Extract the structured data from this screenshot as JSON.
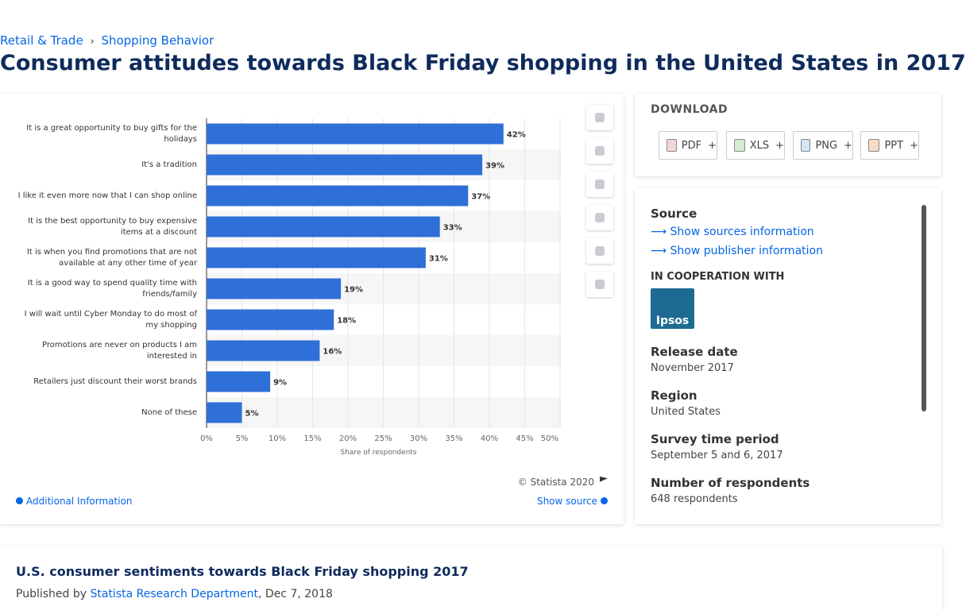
{
  "breadcrumb": {
    "items": [
      "Retail & Trade",
      "Shopping Behavior"
    ],
    "separator": "›"
  },
  "title": "Consumer attitudes towards Black Friday shopping in the United States in 2017",
  "chart_data": {
    "type": "bar",
    "orientation": "horizontal",
    "categories": [
      "It is a great opportunity to buy gifts for the holidays",
      "It's a tradition",
      "I like it even more now that I can shop online",
      "It is the best opportunity to buy expensive items at a discount",
      "It is when you find promotions that are not available at any other time of year",
      "It is a good way to spend quality time with friends/family",
      "I will wait until Cyber Monday to do most of my shopping",
      "Promotions are never on products I am interested in",
      "Retailers just discount their worst brands",
      "None of these"
    ],
    "values": [
      42,
      39,
      37,
      33,
      31,
      19,
      18,
      16,
      9,
      5
    ],
    "value_labels": [
      "42%",
      "39%",
      "37%",
      "33%",
      "31%",
      "19%",
      "18%",
      "16%",
      "9%",
      "5%"
    ],
    "color": "#2f6fd8",
    "xlim": [
      0,
      50
    ],
    "xticks": [
      {
        "value": 0,
        "label": "0%"
      },
      {
        "value": 5,
        "label": "5%"
      },
      {
        "value": 10,
        "label": "10%"
      },
      {
        "value": 15,
        "label": "15%"
      },
      {
        "value": 20,
        "label": "20%"
      },
      {
        "value": 25,
        "label": "25%"
      },
      {
        "value": 30,
        "label": "30%"
      },
      {
        "value": 35,
        "label": "35%"
      },
      {
        "value": 40,
        "label": "40%"
      },
      {
        "value": 45,
        "label": "45%"
      },
      {
        "value": 50,
        "label": "50%"
      }
    ],
    "xlabel": "Share of respondents",
    "grid": true
  },
  "chart_footer": {
    "copyright": "© Statista 2020",
    "additional": "Additional Information",
    "show_source": "Show source"
  },
  "download": {
    "heading": "DOWNLOAD",
    "formats": [
      "PDF",
      "XLS",
      "PNG",
      "PPT"
    ],
    "plus": "+"
  },
  "details": {
    "source": "Source",
    "show_sources": "Show sources information",
    "show_publisher": "Show publisher information",
    "cooperation": "IN COOPERATION WITH",
    "partner": "Ipsos",
    "items": [
      {
        "label": "Release date",
        "value": "November 2017"
      },
      {
        "label": "Region",
        "value": "United States"
      },
      {
        "label": "Survey time period",
        "value": "September 5 and 6, 2017"
      },
      {
        "label": "Number of respondents",
        "value": "648 respondents"
      }
    ]
  },
  "related": {
    "title": "U.S. consumer sentiments towards Black Friday shopping 2017",
    "published_prefix": "Published by",
    "publisher": "Statista Research Department",
    "date": ", Dec 7, 2018"
  }
}
